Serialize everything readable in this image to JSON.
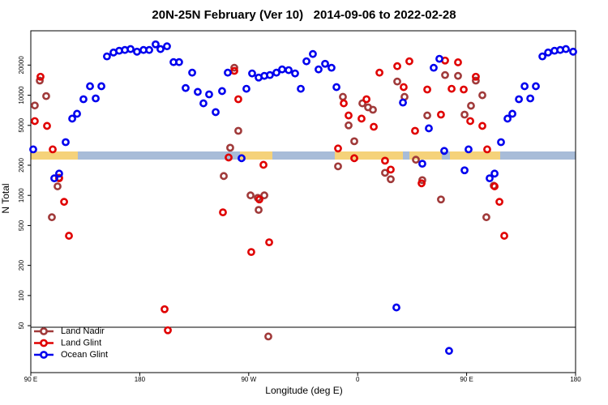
{
  "chart_data": {
    "type": "scatter",
    "title": "20N-25N February (Ver 10)   2014-09-06 to 2022-02-28",
    "x_label": "Longitude (deg E)",
    "y_label": "N Total",
    "log_y": true,
    "legend": "bottom-left",
    "xlim": [
      90,
      540
    ],
    "ylim": [
      17,
      44000
    ],
    "xticks": [
      {
        "value": 90,
        "label": "90 E"
      },
      {
        "value": 180,
        "label": "180"
      },
      {
        "value": 270,
        "label": "90 W"
      },
      {
        "value": 360,
        "label": "0"
      },
      {
        "value": 450,
        "label": "90 E"
      },
      {
        "value": 540,
        "label": "180"
      }
    ],
    "yticks": [
      50,
      100,
      200,
      500,
      1000,
      2000,
      5000,
      10000,
      20000
    ],
    "series": [
      {
        "name": "Land Nadir",
        "color": "#a03a3a",
        "x": [
          93.3,
          97.4,
          102.7,
          107.4,
          112.1,
          113.4,
          249.4,
          254.7,
          258.1,
          261.4,
          271.5,
          277.5,
          278.2,
          282.9,
          286.2,
          343.8,
          347.8,
          352.5,
          357.2,
          363.9,
          368.6,
          372.6,
          382.6,
          387.3,
          392.7,
          398.7,
          408.1,
          413.4,
          417.5,
          428.8,
          432.2,
          442.9,
          448.3,
          453.6,
          457.6,
          463.0,
          466.3,
          472.4
        ],
        "values": [
          7900,
          14000,
          9800,
          605,
          1230,
          1500,
          1560,
          2990,
          18800,
          4410,
          1000,
          945,
          716,
          1000,
          39,
          1950,
          9640,
          5000,
          3470,
          8300,
          7570,
          7160,
          1680,
          1450,
          13700,
          9640,
          2270,
          1420,
          6280,
          910,
          15900,
          15600,
          6400,
          7850,
          14000,
          10000,
          605,
          1250
        ]
      },
      {
        "name": "Land Glint",
        "color": "#e00000",
        "x": [
          93.3,
          98.0,
          103.4,
          108.1,
          113.4,
          117.5,
          121.5,
          200.5,
          203.2,
          248.7,
          253.4,
          258.1,
          261.4,
          272.1,
          278.8,
          282.2,
          286.9,
          343.8,
          348.5,
          352.5,
          357.2,
          363.2,
          367.3,
          373.3,
          378.0,
          382.6,
          387.3,
          392.7,
          398.0,
          402.7,
          407.4,
          412.8,
          417.5,
          428.8,
          432.2,
          437.6,
          442.9,
          447.6,
          453.0,
          457.6,
          463.0,
          467.0,
          473.1,
          477.1,
          481.1
        ],
        "values": [
          5520,
          15300,
          4940,
          2880,
          1480,
          862,
          395,
          73,
          45,
          677,
          2390,
          17500,
          9120,
          272,
          910,
          2020,
          340,
          2940,
          8300,
          6280,
          2350,
          5840,
          9120,
          4840,
          16800,
          2220,
          1810,
          19500,
          12050,
          21800,
          4410,
          1320,
          11400,
          6400,
          22200,
          11600,
          21300,
          11400,
          5520,
          15300,
          4940,
          2880,
          1230,
          862,
          395
        ]
      },
      {
        "name": "Ocean Glint",
        "color": "#0000ee",
        "x": [
          92.0,
          109.4,
          113.4,
          118.8,
          124.2,
          128.2,
          133.5,
          138.9,
          143.6,
          148.3,
          152.9,
          158.3,
          163.0,
          167.7,
          172.4,
          177.7,
          183.1,
          187.8,
          193.1,
          197.1,
          202.5,
          207.9,
          212.5,
          217.9,
          223.3,
          227.9,
          232.6,
          237.3,
          242.7,
          248.0,
          252.7,
          264.1,
          268.1,
          272.8,
          278.2,
          282.9,
          287.5,
          292.9,
          297.6,
          303.0,
          308.3,
          313.0,
          317.7,
          323.0,
          327.7,
          333.1,
          338.4,
          342.5,
          392.0,
          397.4,
          413.4,
          418.8,
          422.8,
          427.5,
          431.5,
          435.5,
          448.3,
          451.6,
          469.0,
          473.1,
          478.4,
          483.8,
          487.8,
          493.2,
          497.9,
          502.6,
          507.2,
          512.6,
          517.3,
          522.6,
          527.3,
          532.0,
          538.0
        ],
        "values": [
          2880,
          1480,
          1650,
          3400,
          5840,
          6530,
          9120,
          12300,
          9290,
          12300,
          24400,
          26700,
          27800,
          28300,
          28900,
          27200,
          28300,
          28300,
          32200,
          28900,
          30800,
          21400,
          21400,
          11800,
          16800,
          10800,
          8300,
          10200,
          6780,
          11000,
          16800,
          2350,
          11600,
          16500,
          15000,
          15600,
          15900,
          16800,
          18100,
          17800,
          16500,
          11600,
          21800,
          25800,
          18100,
          20600,
          18800,
          12050,
          76,
          8450,
          2070,
          4670,
          18800,
          23100,
          2780,
          28,
          1780,
          2880,
          1480,
          1650,
          3400,
          5840,
          6530,
          9120,
          12300,
          9290,
          12300,
          24400,
          26700,
          27800,
          28300,
          28900,
          27200
        ]
      }
    ]
  }
}
